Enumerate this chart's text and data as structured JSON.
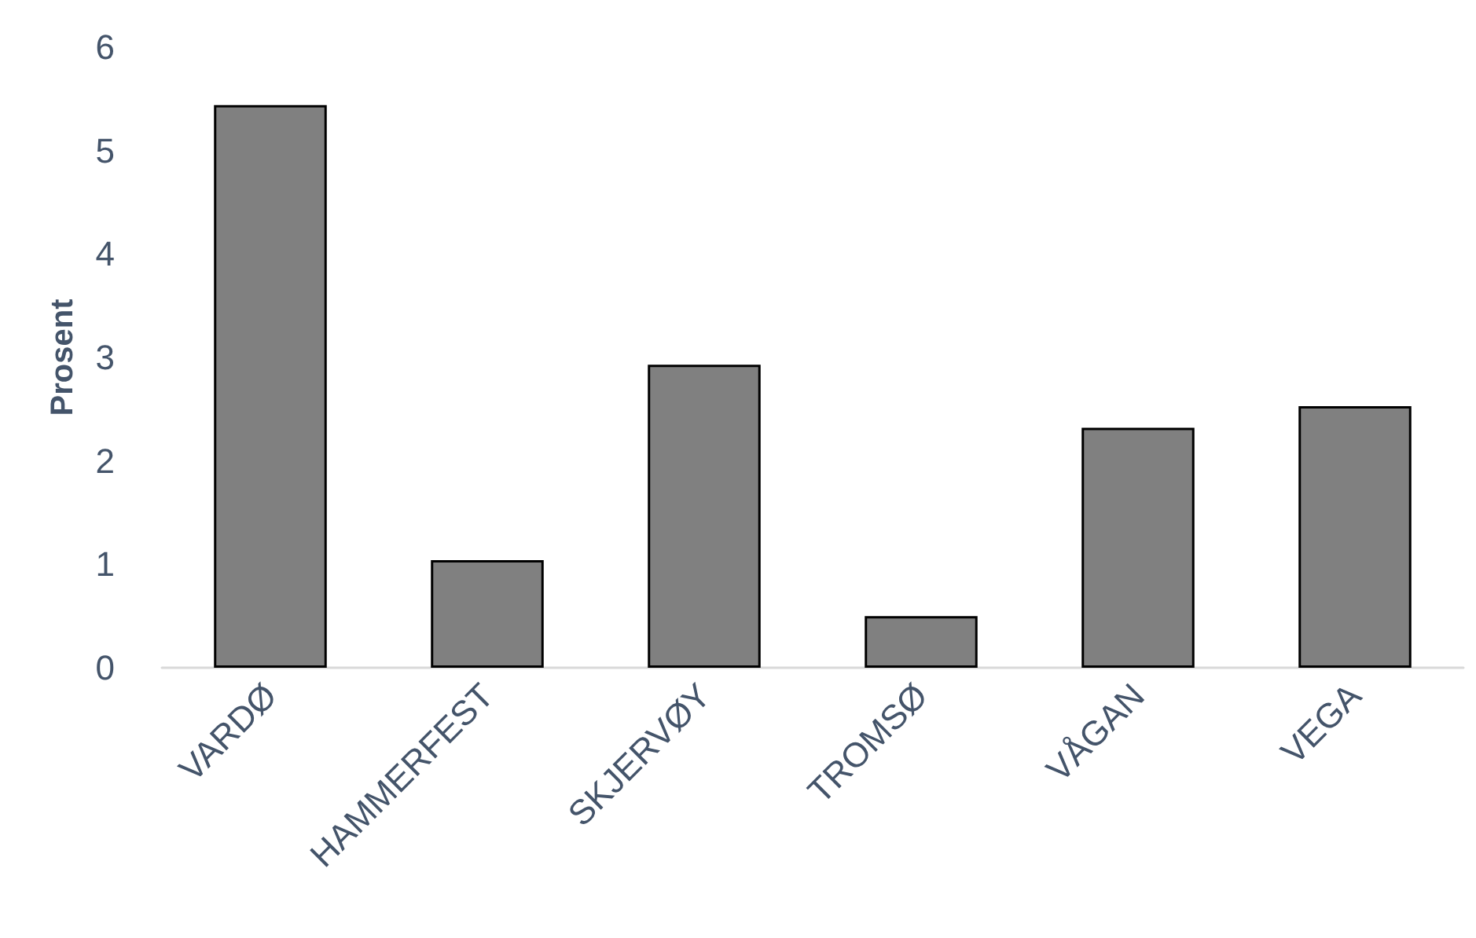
{
  "chart_data": {
    "type": "bar",
    "ylabel": "Prosent",
    "categories": [
      "VARDØ",
      "HAMMERFEST",
      "SKJERVØY",
      "TROMSØ",
      "VÅGAN",
      "VEGA"
    ],
    "values": [
      5.44,
      1.04,
      2.93,
      0.5,
      2.32,
      2.53
    ],
    "color": "#808080",
    "ylim": [
      0,
      6
    ],
    "yticks": [
      0,
      1,
      2,
      3,
      4,
      5,
      6
    ],
    "grid": false
  }
}
